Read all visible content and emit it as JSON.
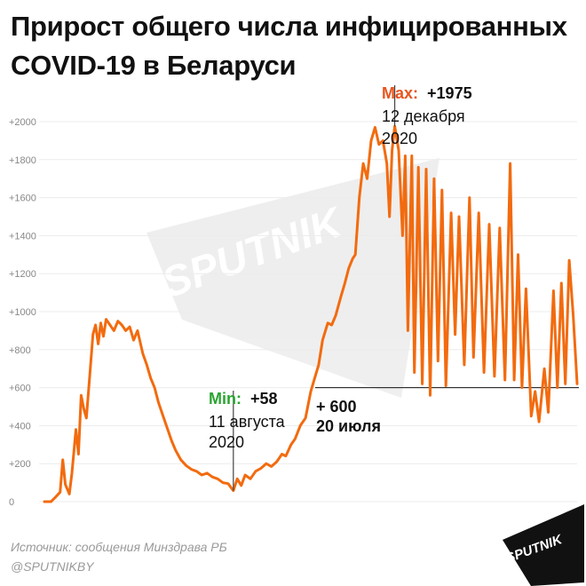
{
  "title_line1": "Прирост общего числа инфицированных",
  "title_line2": "COVID-19 в Беларуси",
  "source": "Источник: сообщения Минздрава РБ",
  "handle": "@SPUTNIKBY",
  "watermark": "SPUTNIK",
  "logo_text": "SPUTNIK",
  "colors": {
    "line": "#f26b0f",
    "max_label": "#e8541e",
    "min_label": "#2aa531",
    "tick": "#888888",
    "logo": "#111111"
  },
  "chart_data": {
    "type": "line",
    "title": "Прирост общего числа инфицированных COVID-19 в Беларуси",
    "xlabel": "",
    "ylabel": "",
    "x_start": "2020-03-20",
    "x_end": "2021-04-30",
    "ylim": [
      0,
      2000
    ],
    "y_ticks": [
      0,
      200,
      400,
      600,
      800,
      1000,
      1200,
      1400,
      1600,
      1800,
      2000
    ],
    "y_tick_labels": [
      "0",
      "+200",
      "+400",
      "+600",
      "+800",
      "+1000",
      "+1200",
      "+1400",
      "+1600",
      "+1800",
      "+2000"
    ],
    "grid": true,
    "series": [
      {
        "name": "",
        "points": [
          [
            "2020-03-20",
            0
          ],
          [
            "2020-03-25",
            0
          ],
          [
            "2020-03-28",
            20
          ],
          [
            "2020-04-01",
            50
          ],
          [
            "2020-04-03",
            220
          ],
          [
            "2020-04-05",
            90
          ],
          [
            "2020-04-08",
            40
          ],
          [
            "2020-04-10",
            150
          ],
          [
            "2020-04-13",
            380
          ],
          [
            "2020-04-15",
            250
          ],
          [
            "2020-04-17",
            560
          ],
          [
            "2020-04-19",
            490
          ],
          [
            "2020-04-21",
            440
          ],
          [
            "2020-04-24",
            700
          ],
          [
            "2020-04-26",
            880
          ],
          [
            "2020-04-28",
            930
          ],
          [
            "2020-04-30",
            830
          ],
          [
            "2020-05-02",
            940
          ],
          [
            "2020-05-04",
            870
          ],
          [
            "2020-05-06",
            960
          ],
          [
            "2020-05-09",
            930
          ],
          [
            "2020-05-12",
            900
          ],
          [
            "2020-05-15",
            950
          ],
          [
            "2020-05-18",
            930
          ],
          [
            "2020-05-21",
            900
          ],
          [
            "2020-05-24",
            920
          ],
          [
            "2020-05-27",
            850
          ],
          [
            "2020-05-30",
            900
          ],
          [
            "2020-06-03",
            780
          ],
          [
            "2020-06-06",
            720
          ],
          [
            "2020-06-09",
            650
          ],
          [
            "2020-06-12",
            600
          ],
          [
            "2020-06-15",
            520
          ],
          [
            "2020-06-18",
            460
          ],
          [
            "2020-06-22",
            380
          ],
          [
            "2020-06-25",
            320
          ],
          [
            "2020-06-28",
            270
          ],
          [
            "2020-07-02",
            220
          ],
          [
            "2020-07-06",
            190
          ],
          [
            "2020-07-10",
            170
          ],
          [
            "2020-07-14",
            160
          ],
          [
            "2020-07-18",
            140
          ],
          [
            "2020-07-22",
            150
          ],
          [
            "2020-07-26",
            130
          ],
          [
            "2020-07-30",
            120
          ],
          [
            "2020-08-03",
            100
          ],
          [
            "2020-08-07",
            95
          ],
          [
            "2020-08-11",
            58
          ],
          [
            "2020-08-14",
            120
          ],
          [
            "2020-08-17",
            85
          ],
          [
            "2020-08-20",
            140
          ],
          [
            "2020-08-24",
            120
          ],
          [
            "2020-08-28",
            160
          ],
          [
            "2020-09-01",
            175
          ],
          [
            "2020-09-05",
            200
          ],
          [
            "2020-09-09",
            185
          ],
          [
            "2020-09-13",
            210
          ],
          [
            "2020-09-17",
            250
          ],
          [
            "2020-09-20",
            240
          ],
          [
            "2020-09-24",
            300
          ],
          [
            "2020-09-27",
            330
          ],
          [
            "2020-10-01",
            400
          ],
          [
            "2020-10-05",
            440
          ],
          [
            "2020-10-09",
            580
          ],
          [
            "2020-10-12",
            650
          ],
          [
            "2020-10-15",
            720
          ],
          [
            "2020-10-18",
            850
          ],
          [
            "2020-10-22",
            940
          ],
          [
            "2020-10-25",
            930
          ],
          [
            "2020-10-28",
            980
          ],
          [
            "2020-11-01",
            1080
          ],
          [
            "2020-11-04",
            1150
          ],
          [
            "2020-11-07",
            1230
          ],
          [
            "2020-11-10",
            1280
          ],
          [
            "2020-11-12",
            1300
          ],
          [
            "2020-11-15",
            1600
          ],
          [
            "2020-11-18",
            1780
          ],
          [
            "2020-11-21",
            1700
          ],
          [
            "2020-11-24",
            1900
          ],
          [
            "2020-11-27",
            1970
          ],
          [
            "2020-11-30",
            1880
          ],
          [
            "2020-12-03",
            1900
          ],
          [
            "2020-12-06",
            1780
          ],
          [
            "2020-12-08",
            1500
          ],
          [
            "2020-12-10",
            1850
          ],
          [
            "2020-12-12",
            1975
          ],
          [
            "2020-12-15",
            1850
          ],
          [
            "2020-12-18",
            1400
          ],
          [
            "2020-12-20",
            1820
          ],
          [
            "2020-12-22",
            900
          ],
          [
            "2020-12-25",
            1820
          ],
          [
            "2020-12-27",
            680
          ],
          [
            "2020-12-30",
            1760
          ],
          [
            "2021-01-02",
            620
          ],
          [
            "2021-01-05",
            1750
          ],
          [
            "2021-01-08",
            560
          ],
          [
            "2021-01-11",
            1700
          ],
          [
            "2021-01-14",
            740
          ],
          [
            "2021-01-17",
            1640
          ],
          [
            "2021-01-20",
            610
          ],
          [
            "2021-01-24",
            1520
          ],
          [
            "2021-01-27",
            880
          ],
          [
            "2021-01-30",
            1500
          ],
          [
            "2021-02-03",
            720
          ],
          [
            "2021-02-07",
            1600
          ],
          [
            "2021-02-10",
            760
          ],
          [
            "2021-02-14",
            1520
          ],
          [
            "2021-02-18",
            680
          ],
          [
            "2021-02-22",
            1460
          ],
          [
            "2021-02-26",
            660
          ],
          [
            "2021-03-02",
            1440
          ],
          [
            "2021-03-06",
            640
          ],
          [
            "2021-03-10",
            1780
          ],
          [
            "2021-03-13",
            640
          ],
          [
            "2021-03-16",
            1300
          ],
          [
            "2021-03-19",
            600
          ],
          [
            "2021-03-22",
            1120
          ],
          [
            "2021-03-26",
            450
          ],
          [
            "2021-03-29",
            580
          ],
          [
            "2021-04-01",
            420
          ],
          [
            "2021-04-05",
            700
          ],
          [
            "2021-04-08",
            470
          ],
          [
            "2021-04-12",
            1110
          ],
          [
            "2021-04-15",
            600
          ],
          [
            "2021-04-18",
            1150
          ],
          [
            "2021-04-21",
            620
          ],
          [
            "2021-04-24",
            1270
          ],
          [
            "2021-04-27",
            980
          ],
          [
            "2021-04-30",
            620
          ]
        ]
      }
    ],
    "annotations": {
      "max": {
        "label": "Max:",
        "value": "+1975",
        "date_line1": "12 декабря",
        "date_line2": "2020",
        "x": "2020-12-12",
        "y": 1975
      },
      "min": {
        "label": "Min:",
        "value": "+58",
        "date_line1": "11 августа",
        "date_line2": "2020",
        "x": "2020-08-11",
        "y": 58
      },
      "ref": {
        "value": "+ 600",
        "date": "20 июля",
        "y": 600
      }
    }
  }
}
